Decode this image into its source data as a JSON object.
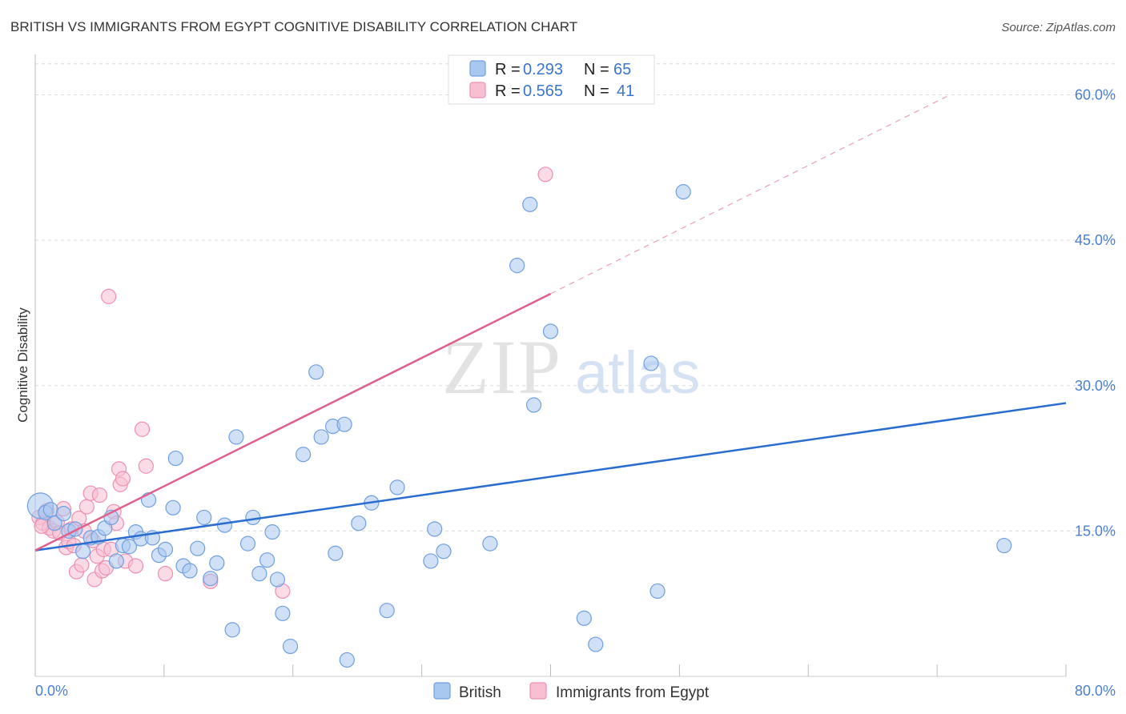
{
  "title": "BRITISH VS IMMIGRANTS FROM EGYPT COGNITIVE DISABILITY CORRELATION CHART",
  "source": "Source: ZipAtlas.com",
  "watermark": {
    "zip": "ZIP",
    "atlas": "atlas"
  },
  "colors": {
    "british_fill": "#a9c8f0",
    "british_stroke": "#6f9fe0",
    "british_line": "#2a6dd0",
    "egypt_fill": "#f7bfd1",
    "egypt_stroke": "#ee8fb0",
    "egypt_line": "#e0608a",
    "grid": "#dcdcdc",
    "tick_label": "#4a7fd4"
  },
  "legend": {
    "r_label": "R =",
    "n_label": "N =",
    "british": {
      "r": "0.293",
      "n": "65"
    },
    "egypt": {
      "r": "0.565",
      "n": "41"
    }
  },
  "chart_data": {
    "type": "scatter",
    "title": "BRITISH VS IMMIGRANTS FROM EGYPT COGNITIVE DISABILITY CORRELATION CHART",
    "xlabel": "",
    "ylabel": "Cognitive Disability",
    "xlim": [
      0,
      80
    ],
    "ylim": [
      0,
      65
    ],
    "x_tick_labels": {
      "left": "0.0%",
      "right": "80.0%"
    },
    "y_ticks": [
      {
        "value": 15,
        "label": "15.0%"
      },
      {
        "value": 30,
        "label": "30.0%"
      },
      {
        "value": 45,
        "label": "45.0%"
      },
      {
        "value": 60,
        "label": "60.0%"
      }
    ],
    "series": [
      {
        "name": "British",
        "r": 0.293,
        "n": 65,
        "trend": {
          "x0": 0,
          "y0": 13.0,
          "x1": 80,
          "y1": 28.2,
          "x_solid_end": 80
        },
        "points": [
          [
            0.4,
            17.6
          ],
          [
            0.8,
            16.9
          ],
          [
            1.2,
            17.2
          ],
          [
            1.5,
            15.8
          ],
          [
            2.2,
            16.8
          ],
          [
            2.6,
            15.0
          ],
          [
            3.1,
            15.2
          ],
          [
            3.7,
            12.9
          ],
          [
            4.3,
            14.3
          ],
          [
            4.9,
            14.4
          ],
          [
            5.4,
            15.3
          ],
          [
            5.9,
            16.4
          ],
          [
            6.3,
            11.9
          ],
          [
            6.8,
            13.5
          ],
          [
            7.3,
            13.4
          ],
          [
            7.8,
            14.9
          ],
          [
            8.2,
            14.2
          ],
          [
            8.8,
            18.2
          ],
          [
            9.1,
            14.3
          ],
          [
            9.6,
            12.5
          ],
          [
            10.1,
            13.1
          ],
          [
            10.7,
            17.4
          ],
          [
            10.9,
            22.5
          ],
          [
            11.5,
            11.4
          ],
          [
            12.0,
            10.9
          ],
          [
            12.6,
            13.2
          ],
          [
            13.1,
            16.4
          ],
          [
            13.6,
            10.1
          ],
          [
            14.1,
            11.7
          ],
          [
            14.7,
            15.6
          ],
          [
            15.3,
            4.8
          ],
          [
            15.6,
            24.7
          ],
          [
            16.5,
            13.7
          ],
          [
            16.9,
            16.4
          ],
          [
            17.4,
            10.6
          ],
          [
            18.0,
            12.0
          ],
          [
            18.4,
            14.9
          ],
          [
            18.8,
            10.0
          ],
          [
            19.2,
            6.5
          ],
          [
            19.8,
            3.1
          ],
          [
            20.8,
            22.9
          ],
          [
            21.8,
            31.4
          ],
          [
            22.2,
            24.7
          ],
          [
            23.1,
            25.8
          ],
          [
            23.3,
            12.7
          ],
          [
            24.0,
            26.0
          ],
          [
            24.2,
            1.7
          ],
          [
            25.1,
            15.8
          ],
          [
            26.1,
            17.9
          ],
          [
            27.3,
            6.8
          ],
          [
            28.1,
            19.5
          ],
          [
            30.7,
            11.9
          ],
          [
            31.0,
            15.2
          ],
          [
            31.7,
            12.9
          ],
          [
            35.3,
            13.7
          ],
          [
            37.4,
            42.4
          ],
          [
            38.4,
            48.7
          ],
          [
            38.7,
            28.0
          ],
          [
            40.0,
            35.6
          ],
          [
            42.6,
            6.0
          ],
          [
            43.5,
            3.3
          ],
          [
            47.8,
            32.3
          ],
          [
            48.3,
            8.8
          ],
          [
            50.3,
            50.0
          ],
          [
            75.2,
            13.5
          ]
        ]
      },
      {
        "name": "Immigrants from Egypt",
        "r": 0.565,
        "n": 41,
        "trend": {
          "x0": 0,
          "y0": 13.0,
          "x1": 71.0,
          "y1": 60.0,
          "x_solid_end": 40.0
        },
        "points": [
          [
            0.3,
            16.4
          ],
          [
            0.6,
            15.8
          ],
          [
            0.9,
            17.1
          ],
          [
            1.1,
            15.3
          ],
          [
            1.4,
            15.0
          ],
          [
            1.7,
            15.9
          ],
          [
            1.9,
            14.8
          ],
          [
            2.2,
            17.3
          ],
          [
            2.4,
            13.3
          ],
          [
            2.6,
            13.9
          ],
          [
            2.8,
            15.2
          ],
          [
            3.0,
            13.5
          ],
          [
            3.2,
            10.8
          ],
          [
            3.4,
            16.3
          ],
          [
            3.6,
            11.5
          ],
          [
            3.8,
            15.0
          ],
          [
            4.0,
            17.5
          ],
          [
            4.3,
            18.9
          ],
          [
            4.5,
            14.0
          ],
          [
            4.6,
            10.0
          ],
          [
            4.8,
            12.4
          ],
          [
            5.0,
            18.7
          ],
          [
            5.2,
            10.9
          ],
          [
            5.3,
            13.1
          ],
          [
            5.5,
            11.2
          ],
          [
            5.7,
            39.2
          ],
          [
            5.9,
            13.1
          ],
          [
            6.1,
            17.0
          ],
          [
            6.3,
            15.8
          ],
          [
            6.5,
            21.4
          ],
          [
            6.6,
            19.8
          ],
          [
            6.8,
            20.4
          ],
          [
            7.0,
            11.9
          ],
          [
            7.8,
            11.4
          ],
          [
            8.3,
            25.5
          ],
          [
            8.6,
            21.7
          ],
          [
            10.1,
            10.6
          ],
          [
            13.6,
            9.8
          ],
          [
            19.2,
            8.8
          ],
          [
            39.6,
            51.8
          ],
          [
            0.5,
            15.5
          ]
        ]
      }
    ]
  },
  "bottom_legend": {
    "british": "British",
    "egypt": "Immigrants from Egypt"
  }
}
